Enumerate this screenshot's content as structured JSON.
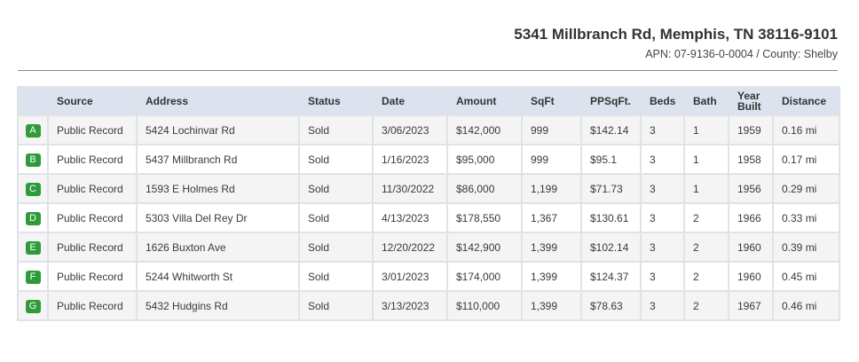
{
  "header": {
    "address": "5341 Millbranch Rd, Memphis, TN 38116-9101",
    "apn_line": "APN: 07-9136-0-0004 / County: Shelby"
  },
  "table": {
    "columns": [
      "",
      "Source",
      "Address",
      "Status",
      "Date",
      "Amount",
      "SqFt",
      "PPSqFt.",
      "Beds",
      "Bath",
      "Year Built",
      "Distance"
    ],
    "rows": [
      {
        "marker": "A",
        "source": "Public Record",
        "address": "5424 Lochinvar Rd",
        "status": "Sold",
        "date": "3/06/2023",
        "amount": "$142,000",
        "sqft": "999",
        "ppsqft": "$142.14",
        "beds": "3",
        "bath": "1",
        "year_built": "1959",
        "distance": "0.16 mi"
      },
      {
        "marker": "B",
        "source": "Public Record",
        "address": "5437 Millbranch Rd",
        "status": "Sold",
        "date": "1/16/2023",
        "amount": "$95,000",
        "sqft": "999",
        "ppsqft": "$95.1",
        "beds": "3",
        "bath": "1",
        "year_built": "1958",
        "distance": "0.17 mi"
      },
      {
        "marker": "C",
        "source": "Public Record",
        "address": "1593 E Holmes Rd",
        "status": "Sold",
        "date": "11/30/2022",
        "amount": "$86,000",
        "sqft": "1,199",
        "ppsqft": "$71.73",
        "beds": "3",
        "bath": "1",
        "year_built": "1956",
        "distance": "0.29 mi"
      },
      {
        "marker": "D",
        "source": "Public Record",
        "address": "5303 Villa Del Rey Dr",
        "status": "Sold",
        "date": "4/13/2023",
        "amount": "$178,550",
        "sqft": "1,367",
        "ppsqft": "$130.61",
        "beds": "3",
        "bath": "2",
        "year_built": "1966",
        "distance": "0.33 mi"
      },
      {
        "marker": "E",
        "source": "Public Record",
        "address": "1626 Buxton Ave",
        "status": "Sold",
        "date": "12/20/2022",
        "amount": "$142,900",
        "sqft": "1,399",
        "ppsqft": "$102.14",
        "beds": "3",
        "bath": "2",
        "year_built": "1960",
        "distance": "0.39 mi"
      },
      {
        "marker": "F",
        "source": "Public Record",
        "address": "5244 Whitworth St",
        "status": "Sold",
        "date": "3/01/2023",
        "amount": "$174,000",
        "sqft": "1,399",
        "ppsqft": "$124.37",
        "beds": "3",
        "bath": "2",
        "year_built": "1960",
        "distance": "0.45 mi"
      },
      {
        "marker": "G",
        "source": "Public Record",
        "address": "5432 Hudgins Rd",
        "status": "Sold",
        "date": "3/13/2023",
        "amount": "$110,000",
        "sqft": "1,399",
        "ppsqft": "$78.63",
        "beds": "3",
        "bath": "2",
        "year_built": "1967",
        "distance": "0.46 mi"
      }
    ]
  },
  "colors": {
    "badge": "#2e9b3a",
    "header_bg": "#dde3ee",
    "row_alt_bg": "#f4f4f4"
  }
}
